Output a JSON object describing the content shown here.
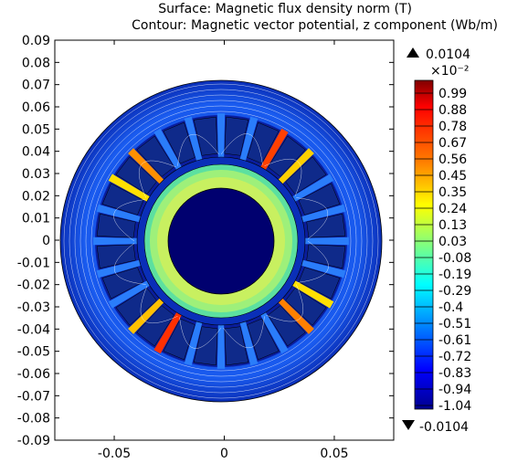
{
  "titles": {
    "surface": "Surface: Magnetic flux density norm (T)",
    "contour": "Contour: Magnetic vector potential, z component (Wb/m)"
  },
  "chart_data": {
    "type": "heatmap",
    "x_ticks": [
      "-0.05",
      "0",
      "0.05"
    ],
    "x_tick_values": [
      -0.05,
      0,
      0.05
    ],
    "y_ticks": [
      "0.09",
      "0.08",
      "0.07",
      "0.06",
      "0.05",
      "0.04",
      "0.03",
      "0.02",
      "0.01",
      "0",
      "-0.01",
      "-0.02",
      "-0.03",
      "-0.04",
      "-0.05",
      "-0.06",
      "-0.07",
      "-0.08",
      "-0.09"
    ],
    "y_tick_values": [
      0.09,
      0.08,
      0.07,
      0.06,
      0.05,
      0.04,
      0.03,
      0.02,
      0.01,
      0,
      -0.01,
      -0.02,
      -0.03,
      -0.04,
      -0.05,
      -0.06,
      -0.07,
      -0.08,
      -0.09
    ],
    "xlim": [
      -0.077,
      0.077
    ],
    "ylim": [
      -0.09,
      0.09
    ],
    "colorbar": {
      "max_label": "0.0104",
      "min_label": "-0.0104",
      "exponent": "×10⁻²",
      "tick_labels": [
        "0.99",
        "0.88",
        "0.78",
        "0.67",
        "0.56",
        "0.45",
        "0.35",
        "0.24",
        "0.13",
        "0.03",
        "-0.08",
        "-0.19",
        "-0.29",
        "-0.4",
        "-0.51",
        "-0.61",
        "-0.72",
        "-0.83",
        "-0.94",
        "-1.04"
      ],
      "colormap": [
        "#7f0000",
        "#ff0000",
        "#ff8000",
        "#ffff00",
        "#80ff80",
        "#00ffff",
        "#0080ff",
        "#0000ff",
        "#00008f"
      ]
    }
  }
}
